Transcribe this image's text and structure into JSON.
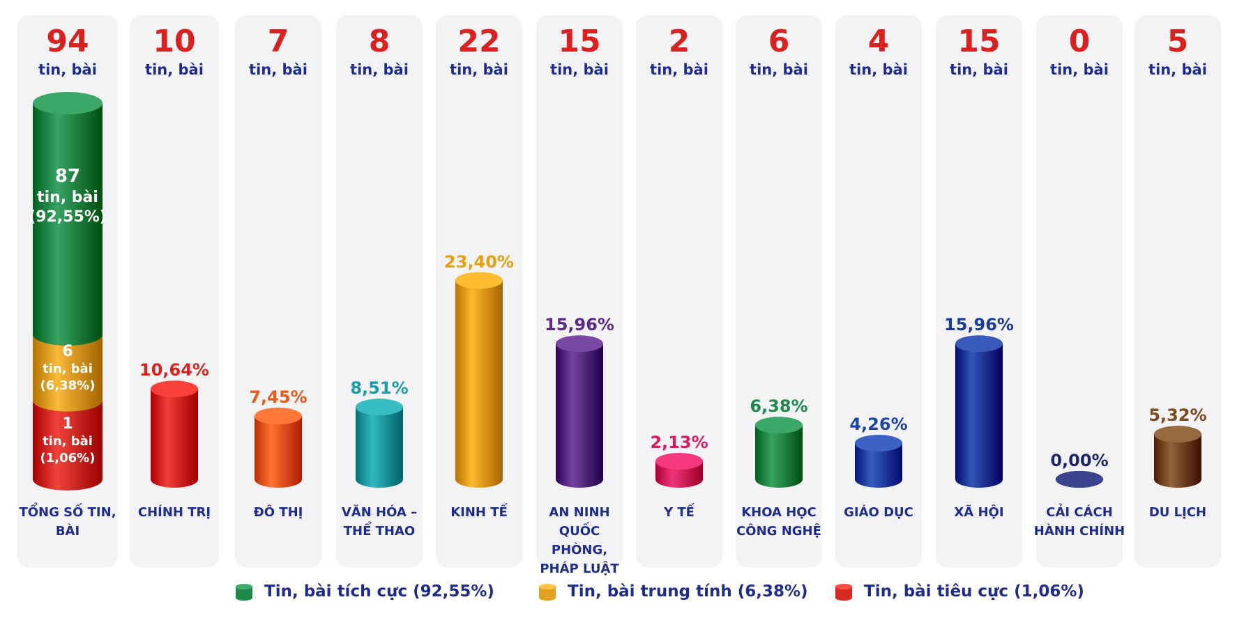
{
  "chart_data": {
    "type": "bar",
    "title": "",
    "xlabel": "",
    "ylabel": "",
    "total": {
      "value": 94,
      "unit": "tin, bài",
      "label": "TỔNG SỐ TIN, BÀI",
      "segments": [
        {
          "name": "positive",
          "value": 87,
          "unit": "tin, bài",
          "pct_label": "(92,55%)",
          "color": "#1e8a4a"
        },
        {
          "name": "neutral",
          "value": 6,
          "unit": "tin, bài",
          "pct_label": "(6,38%)",
          "color": "#e0a020"
        },
        {
          "name": "negative",
          "value": 1,
          "unit": "tin, bài",
          "pct_label": "(1,06%)",
          "color": "#d62a22"
        }
      ]
    },
    "categories": [
      {
        "label": "CHÍNH TRỊ",
        "count": 10,
        "unit": "tin, bài",
        "pct": 10.64,
        "pct_label": "10,64%",
        "color": "#d9241d"
      },
      {
        "label": "ĐÔ THỊ",
        "count": 7,
        "unit": "tin, bài",
        "pct": 7.45,
        "pct_label": "7,45%",
        "color": "#ea5a1a"
      },
      {
        "label": "VĂN HÓA – THỂ THAO",
        "count": 8,
        "unit": "tin, bài",
        "pct": 8.51,
        "pct_label": "8,51%",
        "color": "#1a9ea6"
      },
      {
        "label": "KINH TẾ",
        "count": 22,
        "unit": "tin, bài",
        "pct": 23.4,
        "pct_label": "23,40%",
        "color": "#e4a012"
      },
      {
        "label": "AN NINH QUỐC PHÒNG, PHÁP LUẬT",
        "count": 15,
        "unit": "tin, bài",
        "pct": 15.96,
        "pct_label": "15,96%",
        "color": "#5b2a86"
      },
      {
        "label": "Y TẾ",
        "count": 2,
        "unit": "tin, bài",
        "pct": 2.13,
        "pct_label": "2,13%",
        "color": "#d81b60"
      },
      {
        "label": "KHOA HỌC CÔNG NGHỆ",
        "count": 6,
        "unit": "tin, bài",
        "pct": 6.38,
        "pct_label": "6,38%",
        "color": "#1e8a4a"
      },
      {
        "label": "GIÁO DỤC",
        "count": 4,
        "unit": "tin, bài",
        "pct": 4.26,
        "pct_label": "4,26%",
        "color": "#1e45a6"
      },
      {
        "label": "XÃ HỘI",
        "count": 15,
        "unit": "tin, bài",
        "pct": 15.96,
        "pct_label": "15,96%",
        "color": "#1a3c9c"
      },
      {
        "label": "CẢI CÁCH HÀNH CHÍNH",
        "count": 0,
        "unit": "tin, bài",
        "pct": 0.0,
        "pct_label": "0,00%",
        "color": "#1c2570"
      },
      {
        "label": "DU LỊCH",
        "count": 5,
        "unit": "tin, bài",
        "pct": 5.32,
        "pct_label": "5,32%",
        "color": "#7a4a20"
      }
    ],
    "legend": [
      {
        "label": "Tin, bài tích cực (92,55%)",
        "color": "#1e8a4a"
      },
      {
        "label": "Tin, bài trung tính (6,38%)",
        "color": "#e0a020"
      },
      {
        "label": "Tin, bài tiêu cực (1,06%)",
        "color": "#d62a22"
      }
    ],
    "legend_position": "bottom",
    "grid": false
  }
}
